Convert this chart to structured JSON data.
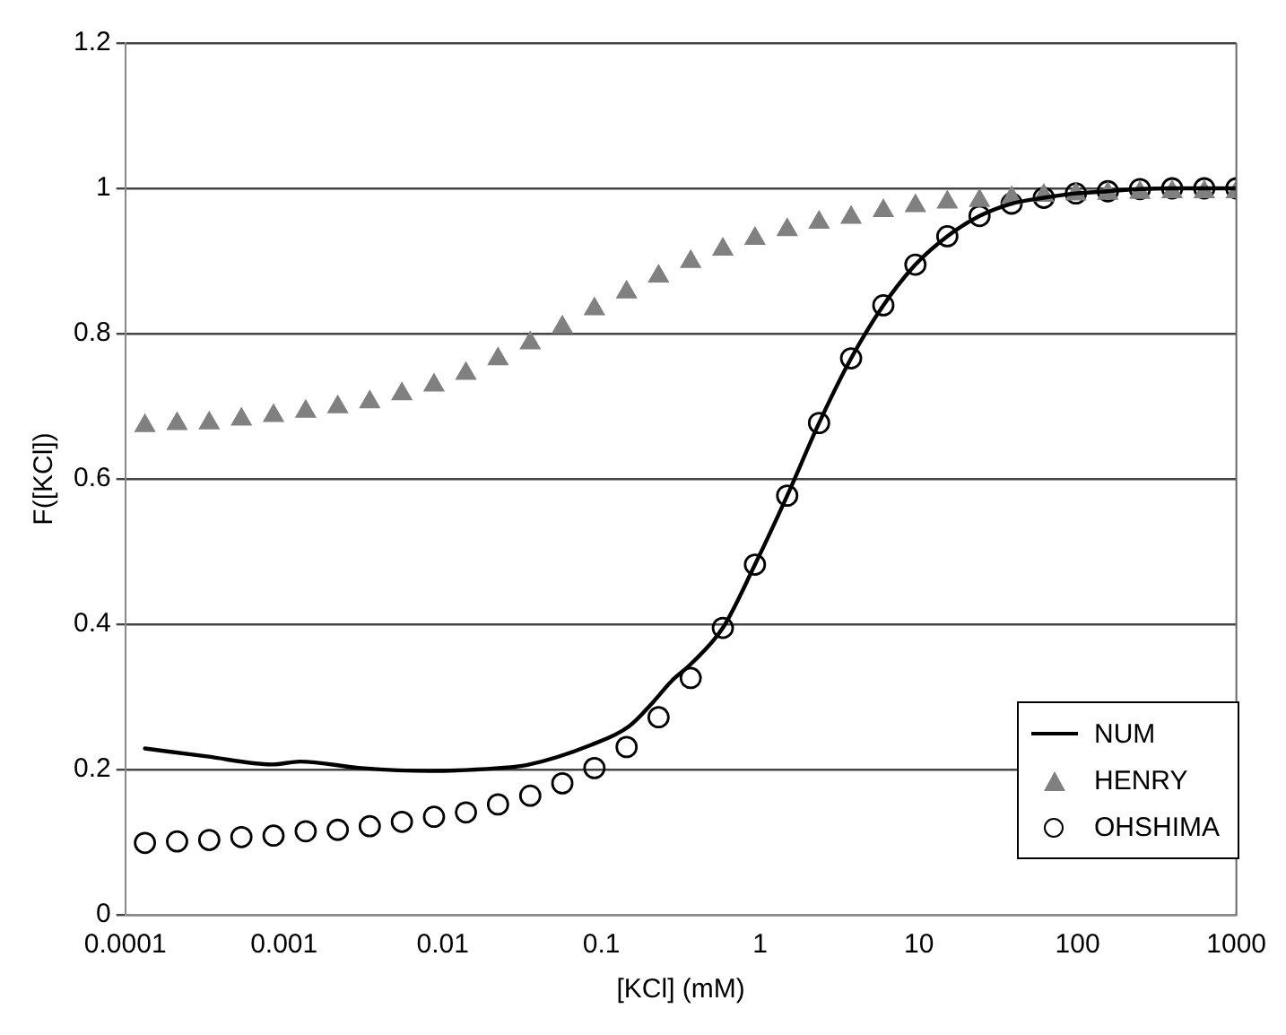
{
  "chart_data": {
    "type": "scatter",
    "xlabel": "[KCl] (mM)",
    "ylabel": "F([KCl])",
    "log": "x",
    "grid": "y",
    "legend": "bottom right",
    "xlim": [
      0.0001,
      1000
    ],
    "xticks": [
      0.0001,
      0.001,
      0.01,
      0.1,
      1,
      10,
      100,
      1000
    ],
    "ylim": [
      0,
      1.2
    ],
    "yticks": [
      0,
      0.2,
      0.4,
      0.6,
      0.8,
      1,
      1.2
    ],
    "series": [
      {
        "name": "NUM",
        "type": "line",
        "marker": "none",
        "line_style": "solid",
        "color": "#000000",
        "x": [
          0.000133,
          0.000327,
          0.00084,
          0.00126,
          0.00307,
          0.00832,
          0.0224,
          0.0336,
          0.0863,
          0.148,
          0.212,
          0.277,
          0.365,
          0.582,
          0.927,
          1.48,
          2.35,
          3.74,
          5.97,
          9.51,
          15.1,
          24.1,
          38.4,
          61.2,
          97.5,
          155,
          247,
          394,
          628,
          1000
        ],
        "values": [
          0.229,
          0.218,
          0.207,
          0.211,
          0.202,
          0.198,
          0.202,
          0.206,
          0.234,
          0.259,
          0.293,
          0.322,
          0.345,
          0.395,
          0.482,
          0.577,
          0.677,
          0.766,
          0.839,
          0.895,
          0.934,
          0.962,
          0.979,
          0.987,
          0.993,
          0.996,
          0.999,
          1.0,
          1.0,
          1.0
        ]
      },
      {
        "name": "HENRY",
        "marker": "triangle",
        "color": "#808080",
        "x": [
          0.000133,
          0.000212,
          0.000338,
          0.000539,
          0.000859,
          0.00137,
          0.00218,
          0.00347,
          0.00553,
          0.00881,
          0.014,
          0.0223,
          0.0356,
          0.0567,
          0.0903,
          0.144,
          0.229,
          0.365,
          0.582,
          0.927,
          1.48,
          2.35,
          3.74,
          5.97,
          9.51,
          15.1,
          24.1,
          38.4,
          61.2,
          97.5,
          155,
          247,
          394,
          628,
          1000
        ],
        "values": [
          0.673,
          0.676,
          0.677,
          0.682,
          0.687,
          0.693,
          0.699,
          0.706,
          0.717,
          0.729,
          0.745,
          0.765,
          0.787,
          0.809,
          0.834,
          0.857,
          0.879,
          0.899,
          0.916,
          0.931,
          0.943,
          0.953,
          0.96,
          0.969,
          0.976,
          0.981,
          0.983,
          0.987,
          0.99,
          0.992,
          0.993,
          0.994,
          0.995,
          0.995,
          0.995
        ]
      },
      {
        "name": "OHSHIMA",
        "marker": "circle",
        "color": "#000000",
        "x": [
          0.000133,
          0.000212,
          0.000338,
          0.000539,
          0.000859,
          0.00137,
          0.00218,
          0.00347,
          0.00553,
          0.00881,
          0.014,
          0.0223,
          0.0356,
          0.0567,
          0.0903,
          0.144,
          0.229,
          0.365,
          0.582,
          0.927,
          1.48,
          2.35,
          3.74,
          5.97,
          9.51,
          15.1,
          24.1,
          38.4,
          61.2,
          97.5,
          155,
          247,
          394,
          628,
          1000
        ],
        "values": [
          0.099,
          0.101,
          0.103,
          0.107,
          0.109,
          0.115,
          0.117,
          0.122,
          0.128,
          0.135,
          0.141,
          0.152,
          0.164,
          0.181,
          0.202,
          0.231,
          0.272,
          0.326,
          0.395,
          0.482,
          0.577,
          0.677,
          0.766,
          0.839,
          0.895,
          0.934,
          0.962,
          0.979,
          0.987,
          0.993,
          0.996,
          0.999,
          1.0,
          1.0,
          1.0
        ]
      }
    ]
  }
}
